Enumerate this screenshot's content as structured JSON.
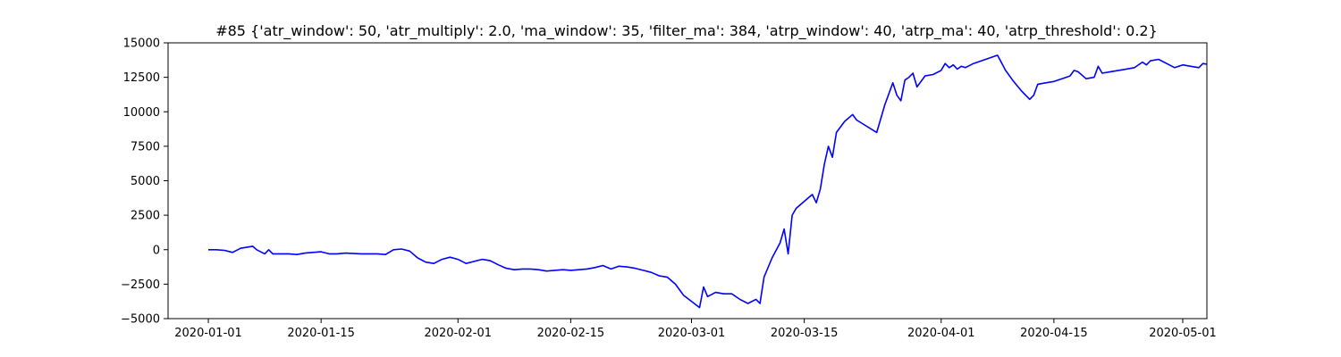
{
  "chart_data": {
    "type": "line",
    "title": "#85 {'atr_window': 50, 'atr_multiply': 2.0, 'ma_window': 35, 'filter_ma': 384, 'atrp_window': 40, 'atrp_ma': 40, 'atrp_threshold': 0.2}",
    "xlabel": "",
    "ylabel": "",
    "xlim": [
      "2019-12-27",
      "2020-05-04"
    ],
    "ylim": [
      -5000,
      15000
    ],
    "grid": false,
    "x_ticks": [
      "2020-01-01",
      "2020-01-15",
      "2020-02-01",
      "2020-02-15",
      "2020-03-01",
      "2020-03-15",
      "2020-04-01",
      "2020-04-15",
      "2020-05-01"
    ],
    "y_ticks": [
      -5000,
      -2500,
      0,
      2500,
      5000,
      7500,
      10000,
      12500,
      15000
    ],
    "y_tick_labels": [
      "−5000",
      "−2500",
      "0",
      "2500",
      "5000",
      "7500",
      "10000",
      "12500",
      "15000"
    ],
    "line_color": "#0000ff",
    "series": [
      {
        "points": [
          [
            "2020-01-01",
            0
          ],
          [
            "2020-01-02",
            0
          ],
          [
            "2020-01-03",
            -50
          ],
          [
            "2020-01-04",
            -200
          ],
          [
            "2020-01-05",
            100
          ],
          [
            "2020-01-06",
            200
          ],
          [
            "2020-01-06T12:00",
            250
          ],
          [
            "2020-01-07",
            0
          ],
          [
            "2020-01-08",
            -300
          ],
          [
            "2020-01-08T12:00",
            0
          ],
          [
            "2020-01-09",
            -300
          ],
          [
            "2020-01-10",
            -300
          ],
          [
            "2020-01-11",
            -300
          ],
          [
            "2020-01-12",
            -350
          ],
          [
            "2020-01-13",
            -250
          ],
          [
            "2020-01-14",
            -200
          ],
          [
            "2020-01-15",
            -150
          ],
          [
            "2020-01-16",
            -300
          ],
          [
            "2020-01-17",
            -300
          ],
          [
            "2020-01-18",
            -250
          ],
          [
            "2020-01-20",
            -300
          ],
          [
            "2020-01-22",
            -300
          ],
          [
            "2020-01-23",
            -350
          ],
          [
            "2020-01-24",
            0
          ],
          [
            "2020-01-25",
            50
          ],
          [
            "2020-01-26",
            -100
          ],
          [
            "2020-01-27",
            -600
          ],
          [
            "2020-01-28",
            -900
          ],
          [
            "2020-01-29",
            -1000
          ],
          [
            "2020-01-30",
            -700
          ],
          [
            "2020-01-31",
            -550
          ],
          [
            "2020-02-01",
            -700
          ],
          [
            "2020-02-02",
            -1000
          ],
          [
            "2020-02-03",
            -850
          ],
          [
            "2020-02-04",
            -700
          ],
          [
            "2020-02-05",
            -800
          ],
          [
            "2020-02-06",
            -1100
          ],
          [
            "2020-02-07",
            -1350
          ],
          [
            "2020-02-08",
            -1450
          ],
          [
            "2020-02-09",
            -1400
          ],
          [
            "2020-02-10",
            -1400
          ],
          [
            "2020-02-11",
            -1450
          ],
          [
            "2020-02-12",
            -1550
          ],
          [
            "2020-02-13",
            -1500
          ],
          [
            "2020-02-14",
            -1450
          ],
          [
            "2020-02-15",
            -1500
          ],
          [
            "2020-02-16",
            -1450
          ],
          [
            "2020-02-17",
            -1400
          ],
          [
            "2020-02-18",
            -1300
          ],
          [
            "2020-02-19",
            -1150
          ],
          [
            "2020-02-20",
            -1400
          ],
          [
            "2020-02-21",
            -1200
          ],
          [
            "2020-02-22",
            -1250
          ],
          [
            "2020-02-23",
            -1350
          ],
          [
            "2020-02-24",
            -1500
          ],
          [
            "2020-02-25",
            -1650
          ],
          [
            "2020-02-26",
            -1900
          ],
          [
            "2020-02-27",
            -2000
          ],
          [
            "2020-02-28",
            -2500
          ],
          [
            "2020-02-29",
            -3300
          ],
          [
            "2020-03-02",
            -4200
          ],
          [
            "2020-03-02T12:00",
            -2700
          ],
          [
            "2020-03-03",
            -3400
          ],
          [
            "2020-03-04",
            -3100
          ],
          [
            "2020-03-05",
            -3200
          ],
          [
            "2020-03-06",
            -3200
          ],
          [
            "2020-03-07",
            -3600
          ],
          [
            "2020-03-08",
            -3900
          ],
          [
            "2020-03-09",
            -3600
          ],
          [
            "2020-03-09T12:00",
            -3900
          ],
          [
            "2020-03-10",
            -2000
          ],
          [
            "2020-03-11",
            -600
          ],
          [
            "2020-03-12",
            500
          ],
          [
            "2020-03-12T12:00",
            1500
          ],
          [
            "2020-03-13",
            -300
          ],
          [
            "2020-03-13T12:00",
            2500
          ],
          [
            "2020-03-14",
            3000
          ],
          [
            "2020-03-16",
            4000
          ],
          [
            "2020-03-16T12:00",
            3400
          ],
          [
            "2020-03-17",
            4400
          ],
          [
            "2020-03-17T12:00",
            6200
          ],
          [
            "2020-03-18",
            7500
          ],
          [
            "2020-03-18T12:00",
            6700
          ],
          [
            "2020-03-19",
            8500
          ],
          [
            "2020-03-20",
            9300
          ],
          [
            "2020-03-21",
            9800
          ],
          [
            "2020-03-21T12:00",
            9400
          ],
          [
            "2020-03-24",
            8500
          ],
          [
            "2020-03-25",
            10500
          ],
          [
            "2020-03-26",
            12100
          ],
          [
            "2020-03-26T12:00",
            11200
          ],
          [
            "2020-03-27",
            10800
          ],
          [
            "2020-03-27T12:00",
            12300
          ],
          [
            "2020-03-28",
            12500
          ],
          [
            "2020-03-28T12:00",
            12800
          ],
          [
            "2020-03-29",
            11800
          ],
          [
            "2020-03-30",
            12600
          ],
          [
            "2020-03-31",
            12700
          ],
          [
            "2020-04-01",
            13000
          ],
          [
            "2020-04-01T12:00",
            13500
          ],
          [
            "2020-04-02",
            13200
          ],
          [
            "2020-04-02T12:00",
            13400
          ],
          [
            "2020-04-03",
            13100
          ],
          [
            "2020-04-03T12:00",
            13300
          ],
          [
            "2020-04-04",
            13200
          ],
          [
            "2020-04-05",
            13500
          ],
          [
            "2020-04-06",
            13700
          ],
          [
            "2020-04-08",
            14100
          ],
          [
            "2020-04-09",
            13000
          ],
          [
            "2020-04-10",
            12200
          ],
          [
            "2020-04-11",
            11500
          ],
          [
            "2020-04-12",
            10900
          ],
          [
            "2020-04-12T12:00",
            11200
          ],
          [
            "2020-04-13",
            12000
          ],
          [
            "2020-04-14",
            12100
          ],
          [
            "2020-04-15",
            12200
          ],
          [
            "2020-04-16",
            12400
          ],
          [
            "2020-04-17",
            12600
          ],
          [
            "2020-04-17T12:00",
            13000
          ],
          [
            "2020-04-18",
            12900
          ],
          [
            "2020-04-19",
            12400
          ],
          [
            "2020-04-20",
            12500
          ],
          [
            "2020-04-20T12:00",
            13300
          ],
          [
            "2020-04-21",
            12800
          ],
          [
            "2020-04-22",
            12900
          ],
          [
            "2020-04-23",
            13000
          ],
          [
            "2020-04-24",
            13100
          ],
          [
            "2020-04-25",
            13200
          ],
          [
            "2020-04-26",
            13600
          ],
          [
            "2020-04-26T12:00",
            13400
          ],
          [
            "2020-04-27",
            13700
          ],
          [
            "2020-04-28",
            13800
          ],
          [
            "2020-04-29",
            13500
          ],
          [
            "2020-04-30",
            13200
          ],
          [
            "2020-05-01",
            13400
          ],
          [
            "2020-05-02",
            13300
          ],
          [
            "2020-05-03",
            13200
          ],
          [
            "2020-05-03T12:00",
            13500
          ],
          [
            "2020-05-04",
            13450
          ]
        ]
      }
    ]
  }
}
